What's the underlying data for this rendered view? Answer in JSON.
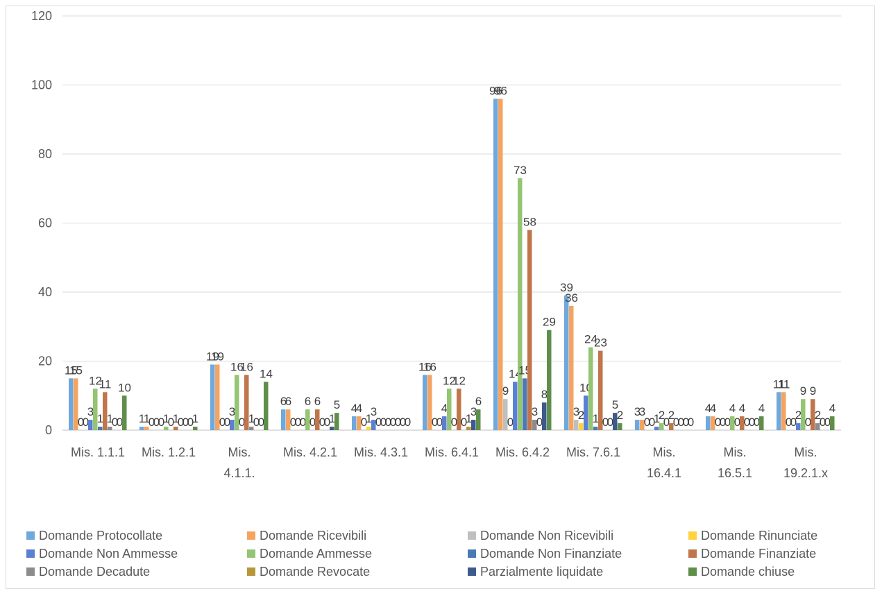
{
  "chart_data": {
    "type": "bar",
    "title": "",
    "xlabel": "",
    "ylabel": "",
    "ylim": [
      0,
      120
    ],
    "yticks": [
      0,
      20,
      40,
      60,
      80,
      100,
      120
    ],
    "grid": true,
    "legend_position": "bottom",
    "categories": [
      [
        "Mis. 1.1.1"
      ],
      [
        "Mis. 1.2.1"
      ],
      [
        "Mis.",
        "4.1.1."
      ],
      [
        "Mis. 4.2.1"
      ],
      [
        "Mis. 4.3.1"
      ],
      [
        "Mis. 6.4.1"
      ],
      [
        "Mis. 6.4.2"
      ],
      [
        "Mis. 7.6.1"
      ],
      [
        "Mis.",
        "16.4.1"
      ],
      [
        "Mis.",
        "16.5.1"
      ],
      [
        "Mis.",
        "19.2.1.x"
      ]
    ],
    "series": [
      {
        "name": "Domande Protocollate",
        "color": "#6FA8DC",
        "values": [
          15,
          1,
          19,
          6,
          4,
          16,
          96,
          39,
          3,
          4,
          11
        ]
      },
      {
        "name": "Domande Ricevibili",
        "color": "#F4A460",
        "values": [
          15,
          1,
          19,
          6,
          4,
          16,
          96,
          36,
          3,
          4,
          11
        ]
      },
      {
        "name": "Domande Non Ricevibili",
        "color": "#BFBFBF",
        "values": [
          0,
          0,
          0,
          0,
          0,
          0,
          9,
          3,
          0,
          0,
          0
        ]
      },
      {
        "name": "Domande Rinunciate",
        "color": "#FFD23F",
        "values": [
          0,
          0,
          0,
          0,
          1,
          0,
          0,
          2,
          0,
          0,
          0
        ]
      },
      {
        "name": "Domande Non Ammesse",
        "color": "#5B7FD4",
        "values": [
          3,
          0,
          3,
          0,
          3,
          4,
          14,
          10,
          1,
          0,
          2
        ]
      },
      {
        "name": "Domande Ammesse",
        "color": "#93C572",
        "values": [
          12,
          1,
          16,
          6,
          0,
          12,
          73,
          24,
          2,
          4,
          9
        ]
      },
      {
        "name": "Domande Non Finanziate",
        "color": "#4A7AB5",
        "values": [
          1,
          0,
          0,
          0,
          0,
          0,
          15,
          1,
          0,
          0,
          0
        ]
      },
      {
        "name": "Domande Finanziate",
        "color": "#C0764A",
        "values": [
          11,
          1,
          16,
          6,
          0,
          12,
          58,
          23,
          2,
          4,
          9
        ]
      },
      {
        "name": "Domande Decadute",
        "color": "#8C8C8C",
        "values": [
          1,
          0,
          1,
          0,
          0,
          0,
          3,
          0,
          0,
          0,
          2
        ]
      },
      {
        "name": "Domande Revocate",
        "color": "#B8963C",
        "values": [
          0,
          0,
          0,
          0,
          0,
          1,
          0,
          0,
          0,
          0,
          0
        ]
      },
      {
        "name": "Parzialmente liquidate",
        "color": "#3E5A8C",
        "values": [
          0,
          0,
          0,
          1,
          0,
          3,
          8,
          5,
          0,
          0,
          0
        ]
      },
      {
        "name": "Domande chiuse",
        "color": "#5E8F4A",
        "values": [
          10,
          1,
          14,
          5,
          0,
          6,
          29,
          2,
          0,
          4,
          4
        ]
      }
    ]
  }
}
